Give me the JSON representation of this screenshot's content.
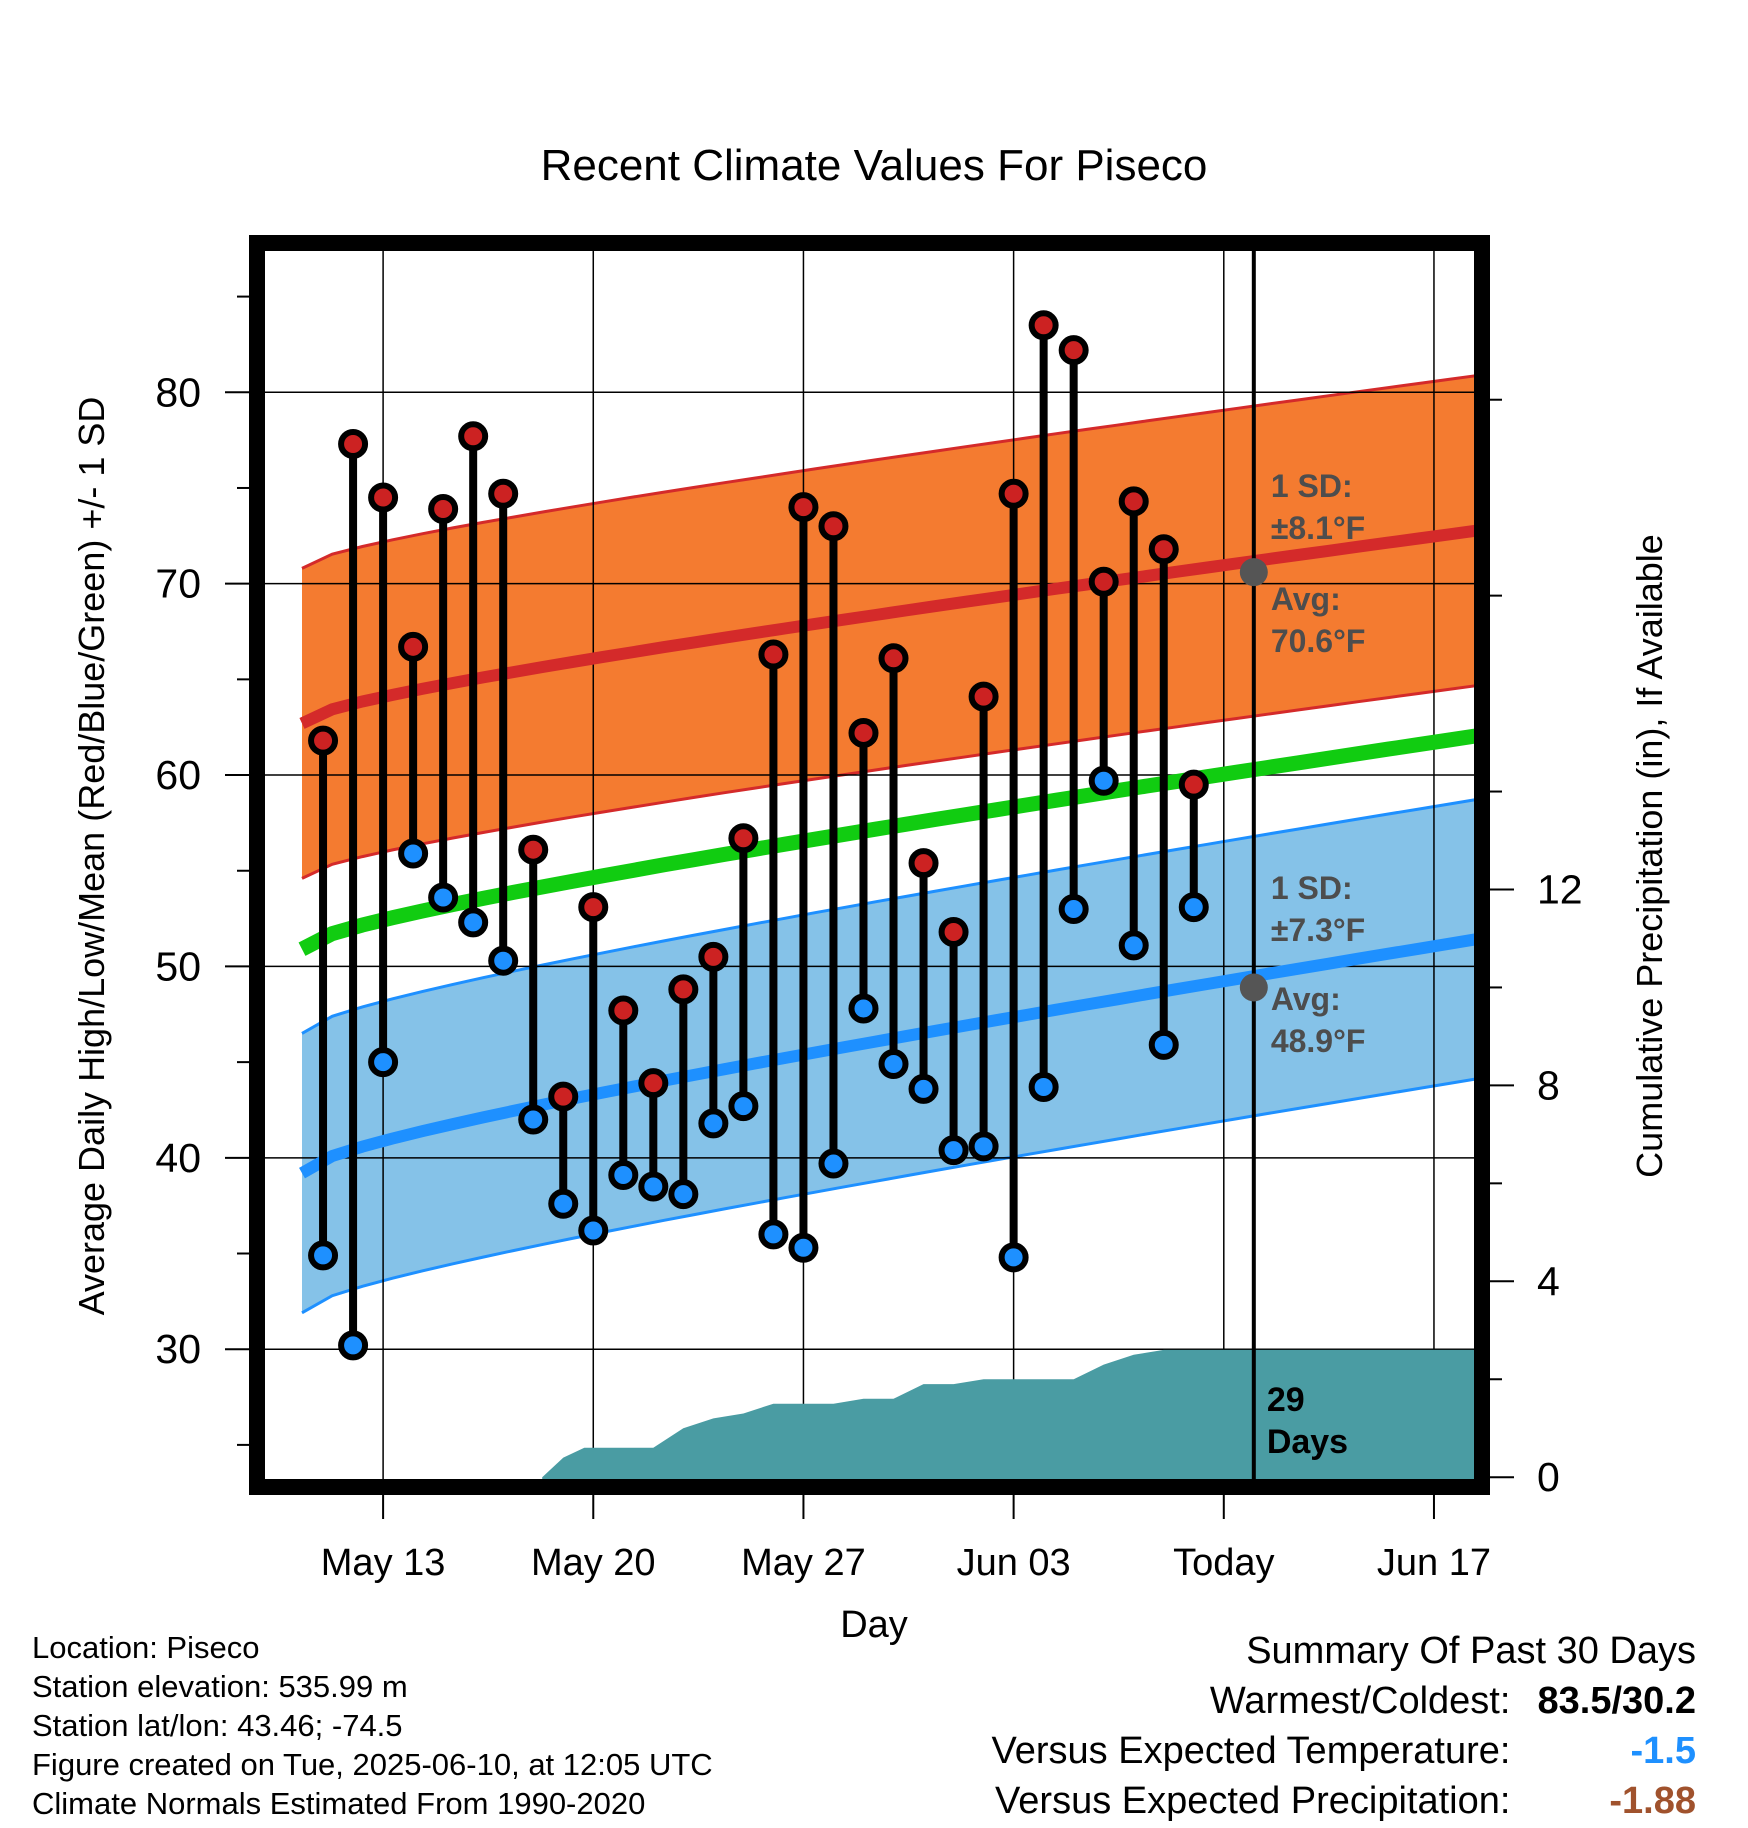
{
  "chart_data": {
    "type": "line",
    "title": "Recent Climate Values For Piseco",
    "xlabel": "Day",
    "ylabel": "Average Daily High/Low/Mean (Red/Blue/Green) +/- 1 SD",
    "y2label": "Cumulative Precipitation (in), If Available",
    "x_tick_labels": [
      "May 13",
      "May 20",
      "May 27",
      "Jun 03",
      "Today",
      "Jun 17"
    ],
    "y_ticks": [
      30,
      40,
      50,
      60,
      70,
      80
    ],
    "y2_ticks": [
      0,
      4,
      8,
      12
    ],
    "ylim": [
      22.8,
      87.8
    ],
    "y2lim": [
      -0.2,
      25.2
    ],
    "xlim": [
      -4.2,
      36.6
    ],
    "grid": true,
    "x_day_index_note": "0 = May 13",
    "days": [
      "May 11",
      "May 12",
      "May 13",
      "May 14",
      "May 15",
      "May 16",
      "May 17",
      "May 18",
      "May 19",
      "May 20",
      "May 21",
      "May 22",
      "May 23",
      "May 24",
      "May 25",
      "May 26",
      "May 27",
      "May 28",
      "May 29",
      "May 30",
      "May 31",
      "Jun 01",
      "Jun 02",
      "Jun 03",
      "Jun 04",
      "Jun 05",
      "Jun 06",
      "Jun 07",
      "Jun 08",
      "Jun 09"
    ],
    "series": [
      {
        "name": "High",
        "color": "#cc2222",
        "values": [
          61.8,
          77.3,
          74.5,
          66.7,
          73.9,
          77.7,
          74.7,
          56.1,
          43.2,
          53.1,
          47.7,
          43.9,
          48.8,
          50.5,
          56.7,
          66.3,
          74.0,
          73.0,
          62.2,
          66.1,
          55.4,
          51.8,
          64.1,
          74.7,
          83.5,
          82.2,
          70.1,
          74.3,
          71.8,
          59.5
        ]
      },
      {
        "name": "Low",
        "color": "#1e90ff",
        "values": [
          34.9,
          30.2,
          45.0,
          55.9,
          53.6,
          52.3,
          50.3,
          42.0,
          37.6,
          36.2,
          39.1,
          38.5,
          38.1,
          41.8,
          42.7,
          36.0,
          35.3,
          39.7,
          47.8,
          44.9,
          43.6,
          40.4,
          40.6,
          34.8,
          43.7,
          53.0,
          59.7,
          51.1,
          45.9,
          53.1
        ]
      }
    ],
    "normals": {
      "x_range": [
        -2.7,
        37.5
      ],
      "high_mean": [
        62.7,
        73.0
      ],
      "high_sd": 8.1,
      "low_mean": [
        39.2,
        51.7
      ],
      "low_sd": 7.3,
      "mean": [
        50.9,
        62.3
      ],
      "colors": {
        "high_band": "#f47b30",
        "high_line": "#d42a2a",
        "low_band": "#85c2e8",
        "low_line": "#1e90ff",
        "mean_line": "#11cc11"
      }
    },
    "precipitation": {
      "color": "#4a9ca3",
      "days": [
        5.3,
        6.0,
        6.7,
        9.0,
        10.0,
        11.0,
        12.0,
        13.0,
        14.0,
        15.0,
        16.0,
        17.0,
        18.0,
        19.0,
        20.0,
        21.0,
        22.0,
        23.0,
        24.0,
        25.0,
        26.0,
        27.0,
        28.0,
        29.0,
        36.5
      ],
      "values": [
        0.0,
        0.4,
        0.6,
        0.6,
        1.0,
        1.2,
        1.3,
        1.5,
        1.5,
        1.5,
        1.6,
        1.6,
        1.9,
        1.9,
        2.0,
        2.0,
        2.0,
        2.0,
        2.3,
        2.5,
        2.6,
        2.6,
        2.6,
        2.6,
        2.6
      ]
    },
    "annotations": {
      "today_day": 29,
      "high_sd_label": "1 SD:",
      "high_sd_value": "±8.1°F",
      "high_avg_label": "Avg:",
      "high_avg_value": "70.6°F",
      "low_sd_label": "1 SD:",
      "low_sd_value": "±7.3°F",
      "low_avg_label": "Avg:",
      "low_avg_value": "48.9°F",
      "today_avg_high": 70.6,
      "today_avg_low": 48.9,
      "precip_days_line1": "29",
      "precip_days_line2": "Days"
    }
  },
  "footer": {
    "location": "Location: Piseco",
    "elevation": "Station elevation: 535.99 m",
    "latlon": "Station lat/lon: 43.46; -74.5",
    "created": "Figure created on Tue, 2025-06-10, at 12:05 UTC",
    "normals": "Climate Normals Estimated From 1990-2020"
  },
  "summary": {
    "title": "Summary Of Past 30 Days",
    "warm_cold_label": "Warmest/Coldest:",
    "warm_cold_value": "83.5/30.2",
    "temp_label": "Versus Expected Temperature:",
    "temp_value": "-1.5",
    "temp_color": "#1e90ff",
    "precip_label": "Versus Expected Precipitation:",
    "precip_value": "-1.88",
    "precip_color": "#a0522d"
  }
}
